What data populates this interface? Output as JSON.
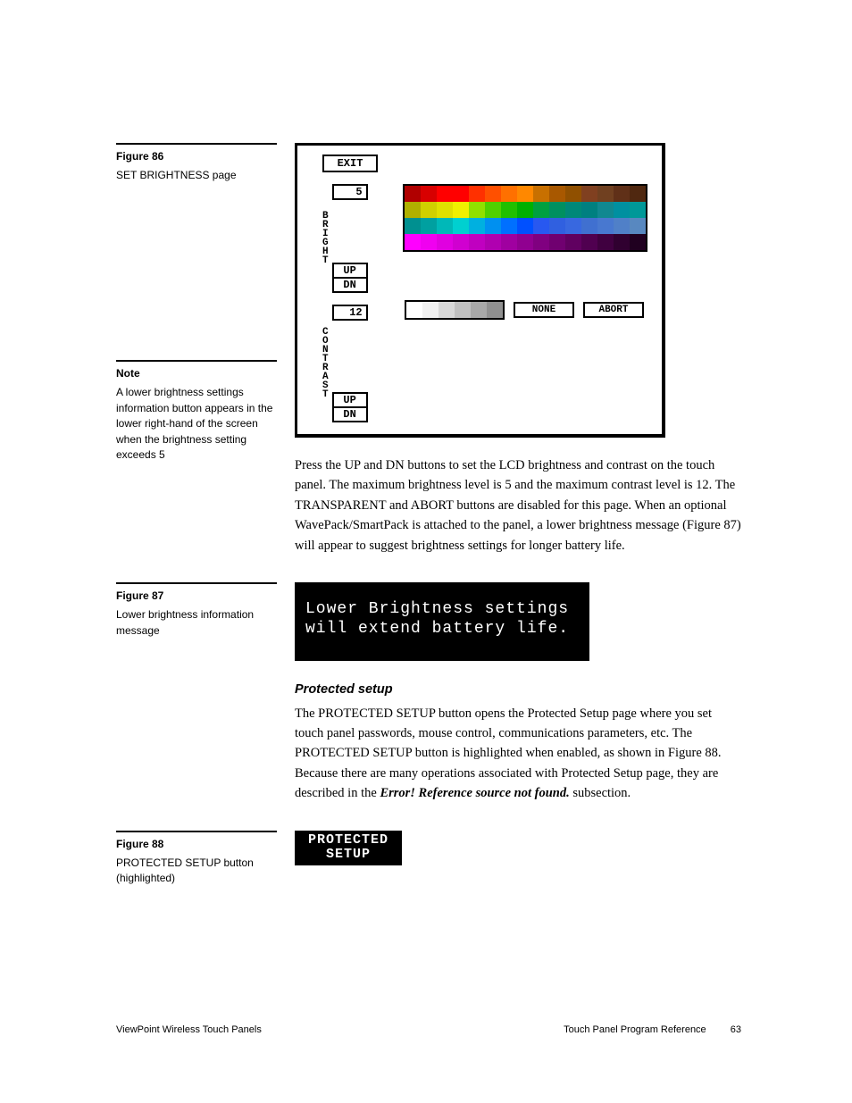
{
  "fig86": {
    "title": "Figure 86",
    "desc": "SET BRIGHTNESS page",
    "panel": {
      "exit": "EXIT",
      "bright_label": "B\nR\nI\nG\nH\nT",
      "bright_value": "5",
      "contrast_label": "C\nO\nN\nT\nR\nA\nS\nT",
      "contrast_value": "12",
      "up": "UP",
      "dn": "DN",
      "none": "NONE",
      "abort": "ABORT",
      "palette_rows": [
        [
          "#b00000",
          "#d80000",
          "#ff0000",
          "#ff0000",
          "#ff3000",
          "#ff5000",
          "#ff7000",
          "#ff8800",
          "#c87000",
          "#a85800",
          "#905000",
          "#804020",
          "#704020",
          "#603018",
          "#502810"
        ],
        [
          "#b0b000",
          "#d0d000",
          "#e0e000",
          "#f0f000",
          "#90e000",
          "#50d000",
          "#20c000",
          "#00b000",
          "#00a040",
          "#009060",
          "#008878",
          "#008080",
          "#108890",
          "#0090a0",
          "#009898"
        ],
        [
          "#009090",
          "#00a0a0",
          "#00b8b8",
          "#00d0d0",
          "#00b0e0",
          "#0090f0",
          "#0070ff",
          "#0050ff",
          "#2858f0",
          "#3060e0",
          "#3868e0",
          "#4070d0",
          "#4878d0",
          "#5080c8",
          "#5888c0"
        ],
        [
          "#ff00ff",
          "#f000f0",
          "#e000e0",
          "#d000d0",
          "#c000c0",
          "#b000b0",
          "#a000a0",
          "#900090",
          "#800080",
          "#700070",
          "#600060",
          "#500050",
          "#400040",
          "#300030",
          "#200020"
        ]
      ],
      "grey_row": [
        "#ffffff",
        "#f0f0f0",
        "#d8d8d8",
        "#c0c0c0",
        "#a8a8a8",
        "#909090"
      ]
    }
  },
  "note": {
    "title": "Note",
    "desc": "A lower brightness settings information button appears in the lower right-hand of the screen when the brightness setting exceeds 5"
  },
  "para1": "Press the UP and DN buttons to set the LCD brightness and contrast on the touch panel. The maximum brightness level is 5 and the maximum contrast level is 12. The TRANSPARENT and ABORT buttons are disabled for this page. When an optional WavePack/SmartPack is attached to the panel, a lower brightness message (Figure 87) will appear to suggest brightness settings for longer battery life.",
  "fig87": {
    "title": "Figure 87",
    "desc": "Lower brightness information message",
    "msg_line1": "Lower Brightness settings",
    "msg_line2": "will extend battery life."
  },
  "protected": {
    "heading": "Protected setup",
    "para_a": "The PROTECTED SETUP button opens the Protected Setup page where you set touch panel passwords, mouse control, communications parameters, etc. The PROTECTED SETUP button is highlighted when enabled, as shown in Figure 88. Because there are many operations associated with Protected Setup page, they are described in the ",
    "error_ref": "Error! Reference source not found.",
    "para_b": " subsection."
  },
  "fig88": {
    "title": "Figure 88",
    "desc": "PROTECTED SETUP button (highlighted)",
    "btn_line1": "PROTECTED",
    "btn_line2": "SETUP"
  },
  "footer": {
    "left": "ViewPoint Wireless Touch Panels",
    "right": "Touch Panel Program Reference",
    "page": "63"
  }
}
